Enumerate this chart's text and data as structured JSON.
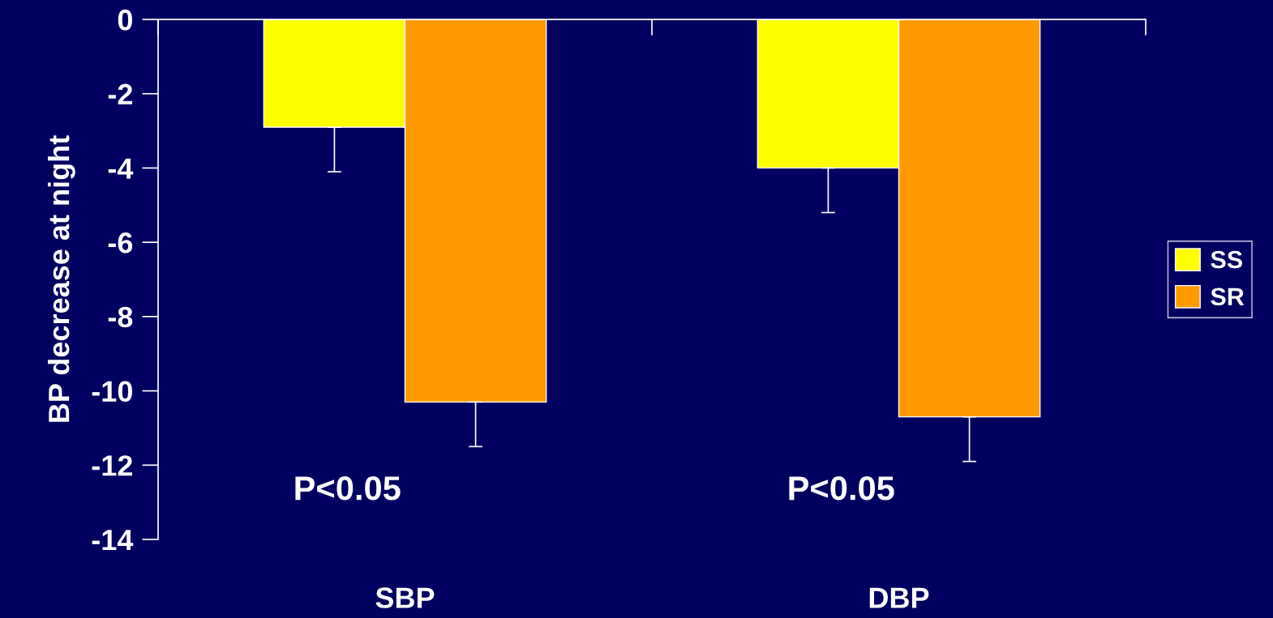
{
  "chart_data": {
    "type": "bar",
    "ylabel": "BP decrease at night",
    "categories": [
      "SBP",
      "DBP"
    ],
    "series": [
      {
        "name": "SS",
        "color": "#ffff00",
        "values": [
          -2.9,
          -4.0
        ],
        "errors": [
          [
            -4.1,
            -2.9
          ],
          [
            -5.2,
            -4.0
          ]
        ]
      },
      {
        "name": "SR",
        "color": "#ff9900",
        "values": [
          -10.3,
          -10.7
        ],
        "errors": [
          [
            -11.5,
            -10.3
          ],
          [
            -11.9,
            -10.7
          ]
        ]
      }
    ],
    "ylim": [
      -14,
      0
    ],
    "yticks": [
      -14,
      -12,
      -10,
      -8,
      -6,
      -4,
      -2,
      0
    ],
    "annotations": [
      "P<0.05",
      "P<0.05"
    ],
    "grid": false,
    "legend": "right"
  }
}
